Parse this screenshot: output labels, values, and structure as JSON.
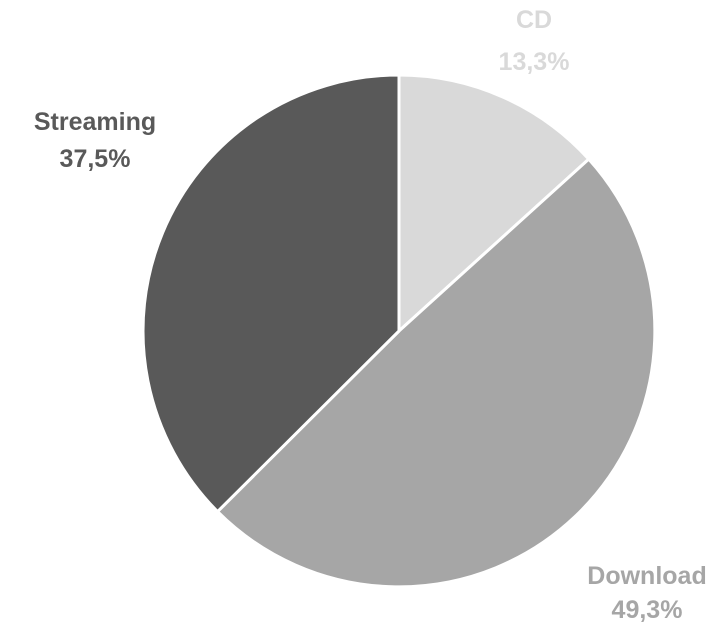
{
  "chart_data": {
    "type": "pie",
    "title": "",
    "start_angle_deg": 0,
    "direction": "clockwise",
    "slices": [
      {
        "label": "CD",
        "value": 13.3,
        "value_label": "13,3%",
        "color": "#d9d9d9"
      },
      {
        "label": "Download",
        "value": 49.3,
        "value_label": "49,3%",
        "color": "#a6a6a6"
      },
      {
        "label": "Streaming",
        "value": 37.5,
        "value_label": "37,5%",
        "color": "#595959"
      }
    ],
    "legend": "none",
    "label_placement": "outside"
  }
}
